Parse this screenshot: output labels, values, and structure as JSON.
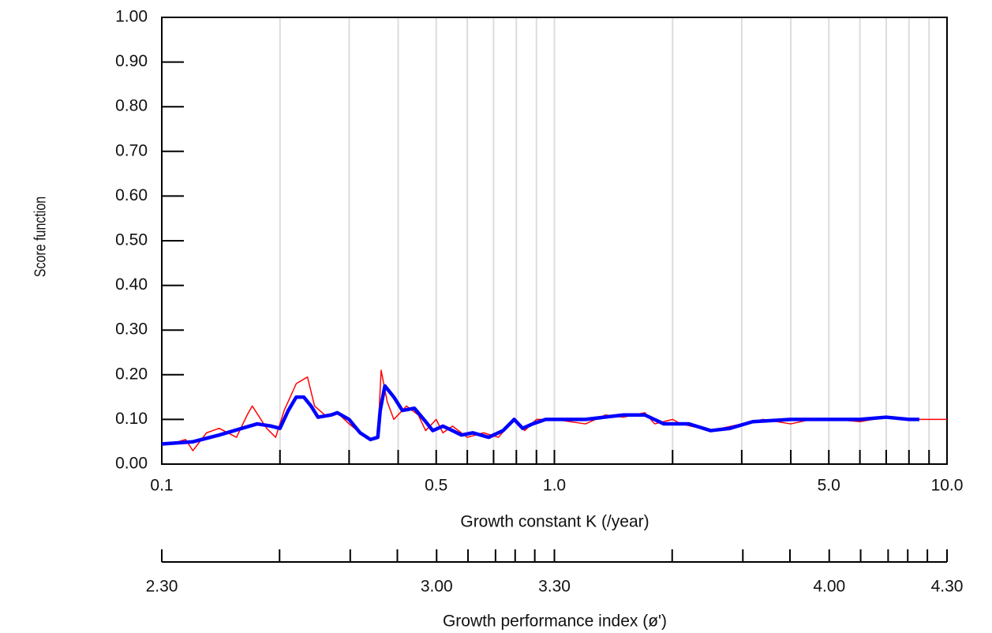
{
  "chart_data": {
    "type": "line",
    "y_label": "Score function",
    "x_label": "Growth constant K (/year)",
    "x2_label": "Growth performance index (ø')",
    "x_scale": "log",
    "grid": "x",
    "xlim": [
      0.1,
      10
    ],
    "xticks": [
      0.1,
      0.5,
      {
        "value": 1,
        "label": "1.0"
      },
      {
        "value": 5,
        "label": "5.0"
      },
      {
        "value": 10,
        "label": "10.0"
      }
    ],
    "x_minor_ticks": [
      0.2,
      0.3,
      0.4,
      0.6,
      0.7,
      0.8,
      0.9,
      2,
      3,
      4,
      6,
      7,
      8,
      9
    ],
    "ylim": [
      0,
      1
    ],
    "yticks": [
      {
        "value": 0,
        "label": "0.00"
      },
      {
        "value": 0.1,
        "label": "0.10"
      },
      {
        "value": 0.2,
        "label": "0.20"
      },
      {
        "value": 0.3,
        "label": "0.30"
      },
      {
        "value": 0.4,
        "label": "0.40"
      },
      {
        "value": 0.5,
        "label": "0.50"
      },
      {
        "value": 0.6,
        "label": "0.60"
      },
      {
        "value": 0.7,
        "label": "0.70"
      },
      {
        "value": 0.8,
        "label": "0.80"
      },
      {
        "value": 0.9,
        "label": "0.90"
      },
      {
        "value": 1,
        "label": "1.00"
      }
    ],
    "x2lim": [
      2.3,
      4.3
    ],
    "x2ticks": [
      {
        "value": 2.3,
        "label": "2.30"
      },
      {
        "value": 3,
        "label": "3.00"
      },
      {
        "value": 3.3,
        "label": "3.30"
      },
      {
        "value": 4,
        "label": "4.00"
      },
      {
        "value": 4.3,
        "label": "4.30"
      }
    ],
    "x2_minor_ticks": [
      2.6,
      2.78,
      2.9,
      3.08,
      3.15,
      3.2,
      3.25,
      3.6,
      3.78,
      3.9,
      4.08,
      4.15,
      4.2,
      4.25
    ],
    "series": [
      {
        "color": "#ff0000",
        "width": 1.5,
        "x": [
          0.1,
          0.11,
          0.115,
          0.12,
          0.13,
          0.14,
          0.155,
          0.165,
          0.17,
          0.185,
          0.195,
          0.205,
          0.22,
          0.235,
          0.245,
          0.26,
          0.28,
          0.3,
          0.32,
          0.34,
          0.355,
          0.362,
          0.375,
          0.39,
          0.42,
          0.45,
          0.47,
          0.5,
          0.52,
          0.55,
          0.6,
          0.66,
          0.72,
          0.79,
          0.84,
          0.9,
          1.0,
          1.2,
          1.35,
          1.5,
          1.7,
          1.8,
          2.0,
          2.1,
          2.5,
          3,
          3.4,
          4,
          4.5,
          5.2,
          6,
          7,
          8,
          10
        ],
        "values": [
          0.045,
          0.05,
          0.055,
          0.03,
          0.07,
          0.08,
          0.06,
          0.11,
          0.13,
          0.08,
          0.06,
          0.12,
          0.18,
          0.195,
          0.13,
          0.11,
          0.115,
          0.09,
          0.07,
          0.055,
          0.06,
          0.21,
          0.14,
          0.1,
          0.13,
          0.11,
          0.075,
          0.1,
          0.07,
          0.085,
          0.06,
          0.07,
          0.06,
          0.1,
          0.075,
          0.1,
          0.1,
          0.09,
          0.11,
          0.105,
          0.115,
          0.09,
          0.1,
          0.09,
          0.075,
          0.09,
          0.1,
          0.09,
          0.1,
          0.1,
          0.095,
          0.105,
          0.1,
          0.1
        ]
      },
      {
        "color": "#0000ff",
        "width": 4.5,
        "x": [
          0.1,
          0.12,
          0.14,
          0.16,
          0.175,
          0.19,
          0.2,
          0.21,
          0.22,
          0.23,
          0.24,
          0.25,
          0.27,
          0.28,
          0.3,
          0.32,
          0.34,
          0.355,
          0.36,
          0.37,
          0.39,
          0.41,
          0.44,
          0.47,
          0.49,
          0.52,
          0.55,
          0.58,
          0.62,
          0.68,
          0.74,
          0.79,
          0.83,
          0.88,
          0.95,
          1.2,
          1.5,
          1.7,
          1.9,
          2.2,
          2.5,
          2.8,
          3.2,
          4,
          5,
          6,
          7,
          8,
          8.5
        ],
        "values": [
          0.045,
          0.05,
          0.065,
          0.08,
          0.09,
          0.085,
          0.08,
          0.12,
          0.15,
          0.15,
          0.13,
          0.105,
          0.11,
          0.115,
          0.1,
          0.07,
          0.055,
          0.06,
          0.12,
          0.175,
          0.15,
          0.12,
          0.125,
          0.095,
          0.075,
          0.085,
          0.075,
          0.065,
          0.07,
          0.06,
          0.075,
          0.1,
          0.08,
          0.09,
          0.1,
          0.1,
          0.11,
          0.11,
          0.09,
          0.09,
          0.075,
          0.08,
          0.095,
          0.1,
          0.1,
          0.1,
          0.105,
          0.1,
          0.1
        ]
      }
    ]
  }
}
